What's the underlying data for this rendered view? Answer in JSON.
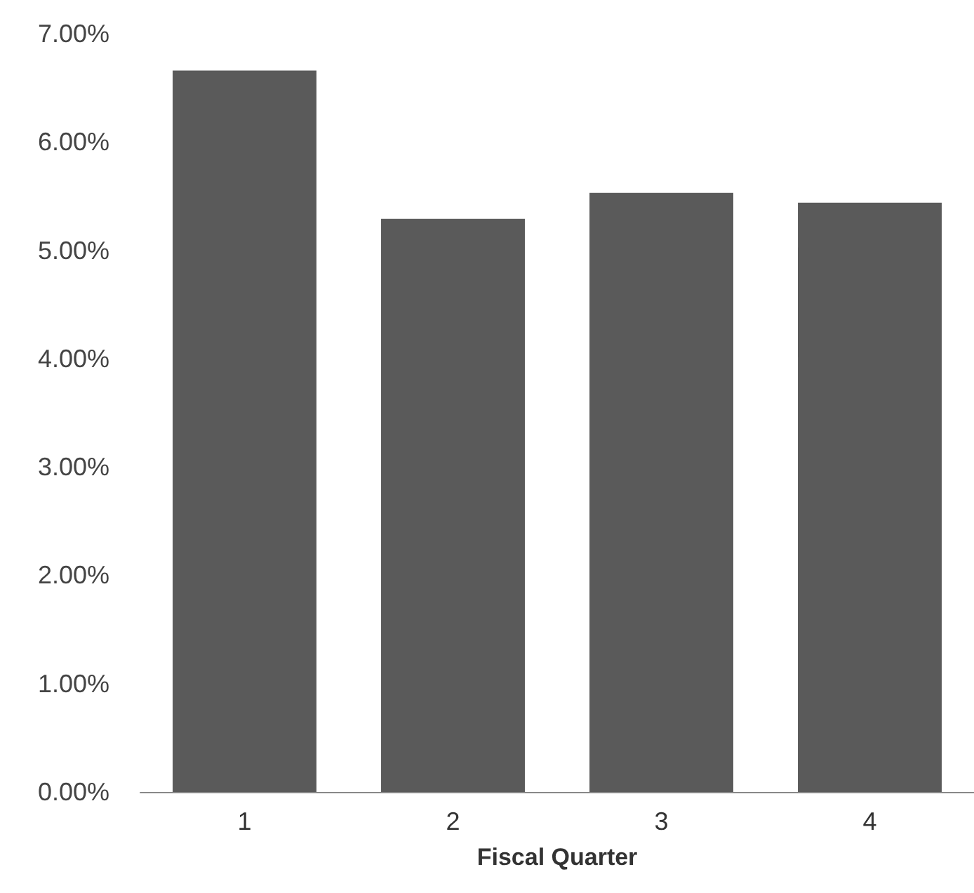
{
  "chart_data": {
    "type": "bar",
    "xlabel": "Fiscal Quarter",
    "categories": [
      "1",
      "2",
      "3",
      "4"
    ],
    "values": [
      6.66,
      5.29,
      5.53,
      5.44
    ],
    "color": "#5a5a5a",
    "ylim": [
      0,
      7
    ],
    "yticks": [
      {
        "value": 0,
        "label": "0.00%"
      },
      {
        "value": 1,
        "label": "1.00%"
      },
      {
        "value": 2,
        "label": "2.00%"
      },
      {
        "value": 3,
        "label": "3.00%"
      },
      {
        "value": 4,
        "label": "4.00%"
      },
      {
        "value": 5,
        "label": "5.00%"
      },
      {
        "value": 6,
        "label": "6.00%"
      },
      {
        "value": 7,
        "label": "7.00%"
      }
    ],
    "grid": false
  }
}
